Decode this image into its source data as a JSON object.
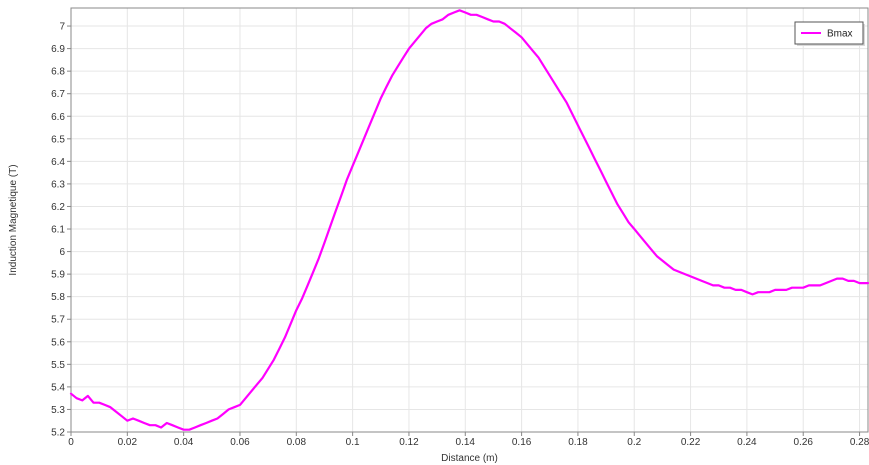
{
  "chart_data": {
    "type": "line",
    "title": "",
    "xlabel": "Distance (m)",
    "ylabel": "Induction Magnetique (T)",
    "xlim": [
      0,
      0.283
    ],
    "ylim": [
      5.2,
      7.08
    ],
    "xticks": [
      0,
      0.02,
      0.04,
      0.06,
      0.08,
      0.1,
      0.12,
      0.14,
      0.16,
      0.18,
      0.2,
      0.22,
      0.24,
      0.26,
      0.28
    ],
    "xtick_labels": [
      "0",
      "0.02",
      "0.04",
      "0.06",
      "0.08",
      "0.1",
      "0.12",
      "0.14",
      "0.16",
      "0.18",
      "0.2",
      "0.22",
      "0.24",
      "0.26",
      "0.28"
    ],
    "yticks": [
      5.2,
      5.3,
      5.4,
      5.5,
      5.6,
      5.7,
      5.8,
      5.9,
      6.0,
      6.1,
      6.2,
      6.3,
      6.4,
      6.5,
      6.6,
      6.7,
      6.8,
      6.9,
      7.0
    ],
    "ytick_labels": [
      "5.2",
      "5.3",
      "5.4",
      "5.5",
      "5.6",
      "5.7",
      "5.8",
      "5.9",
      "6",
      "6.1",
      "6.2",
      "6.3",
      "6.4",
      "6.5",
      "6.6",
      "6.7",
      "6.8",
      "6.9",
      "7"
    ],
    "grid": true,
    "legend_position": "top-right",
    "series": [
      {
        "name": "Bmax",
        "color": "#ff00ff",
        "x": [
          0,
          0.002,
          0.004,
          0.006,
          0.008,
          0.01,
          0.012,
          0.014,
          0.016,
          0.018,
          0.02,
          0.022,
          0.024,
          0.026,
          0.028,
          0.03,
          0.032,
          0.034,
          0.036,
          0.038,
          0.04,
          0.042,
          0.044,
          0.046,
          0.048,
          0.05,
          0.052,
          0.054,
          0.056,
          0.058,
          0.06,
          0.062,
          0.064,
          0.066,
          0.068,
          0.07,
          0.072,
          0.074,
          0.076,
          0.078,
          0.08,
          0.082,
          0.084,
          0.086,
          0.088,
          0.09,
          0.092,
          0.094,
          0.096,
          0.098,
          0.1,
          0.102,
          0.104,
          0.106,
          0.108,
          0.11,
          0.112,
          0.114,
          0.116,
          0.118,
          0.12,
          0.122,
          0.124,
          0.126,
          0.128,
          0.13,
          0.132,
          0.134,
          0.136,
          0.138,
          0.14,
          0.142,
          0.144,
          0.146,
          0.148,
          0.15,
          0.152,
          0.154,
          0.156,
          0.158,
          0.16,
          0.162,
          0.164,
          0.166,
          0.168,
          0.17,
          0.172,
          0.174,
          0.176,
          0.178,
          0.18,
          0.182,
          0.184,
          0.186,
          0.188,
          0.19,
          0.192,
          0.194,
          0.196,
          0.198,
          0.2,
          0.202,
          0.204,
          0.206,
          0.208,
          0.21,
          0.212,
          0.214,
          0.216,
          0.218,
          0.22,
          0.222,
          0.224,
          0.226,
          0.228,
          0.23,
          0.232,
          0.234,
          0.236,
          0.238,
          0.24,
          0.242,
          0.244,
          0.246,
          0.248,
          0.25,
          0.252,
          0.254,
          0.256,
          0.258,
          0.26,
          0.262,
          0.264,
          0.266,
          0.268,
          0.27,
          0.272,
          0.274,
          0.276,
          0.278,
          0.28,
          0.282,
          0.283
        ],
        "values": [
          5.37,
          5.35,
          5.34,
          5.36,
          5.33,
          5.33,
          5.32,
          5.31,
          5.29,
          5.27,
          5.25,
          5.26,
          5.25,
          5.24,
          5.23,
          5.23,
          5.22,
          5.24,
          5.23,
          5.22,
          5.21,
          5.21,
          5.22,
          5.23,
          5.24,
          5.25,
          5.26,
          5.28,
          5.3,
          5.31,
          5.32,
          5.35,
          5.38,
          5.41,
          5.44,
          5.48,
          5.52,
          5.57,
          5.62,
          5.68,
          5.74,
          5.79,
          5.85,
          5.91,
          5.97,
          6.04,
          6.11,
          6.18,
          6.25,
          6.32,
          6.38,
          6.44,
          6.5,
          6.56,
          6.62,
          6.68,
          6.73,
          6.78,
          6.82,
          6.86,
          6.9,
          6.93,
          6.96,
          6.99,
          7.01,
          7.02,
          7.03,
          7.05,
          7.06,
          7.07,
          7.06,
          7.05,
          7.05,
          7.04,
          7.03,
          7.02,
          7.02,
          7.01,
          6.99,
          6.97,
          6.95,
          6.92,
          6.89,
          6.86,
          6.82,
          6.78,
          6.74,
          6.7,
          6.66,
          6.61,
          6.56,
          6.51,
          6.46,
          6.41,
          6.36,
          6.31,
          6.26,
          6.21,
          6.17,
          6.13,
          6.1,
          6.07,
          6.04,
          6.01,
          5.98,
          5.96,
          5.94,
          5.92,
          5.91,
          5.9,
          5.89,
          5.88,
          5.87,
          5.86,
          5.85,
          5.85,
          5.84,
          5.84,
          5.83,
          5.83,
          5.82,
          5.81,
          5.82,
          5.82,
          5.82,
          5.83,
          5.83,
          5.83,
          5.84,
          5.84,
          5.84,
          5.85,
          5.85,
          5.85,
          5.86,
          5.87,
          5.88,
          5.88,
          5.87,
          5.87,
          5.86,
          5.86,
          5.86
        ]
      }
    ]
  }
}
